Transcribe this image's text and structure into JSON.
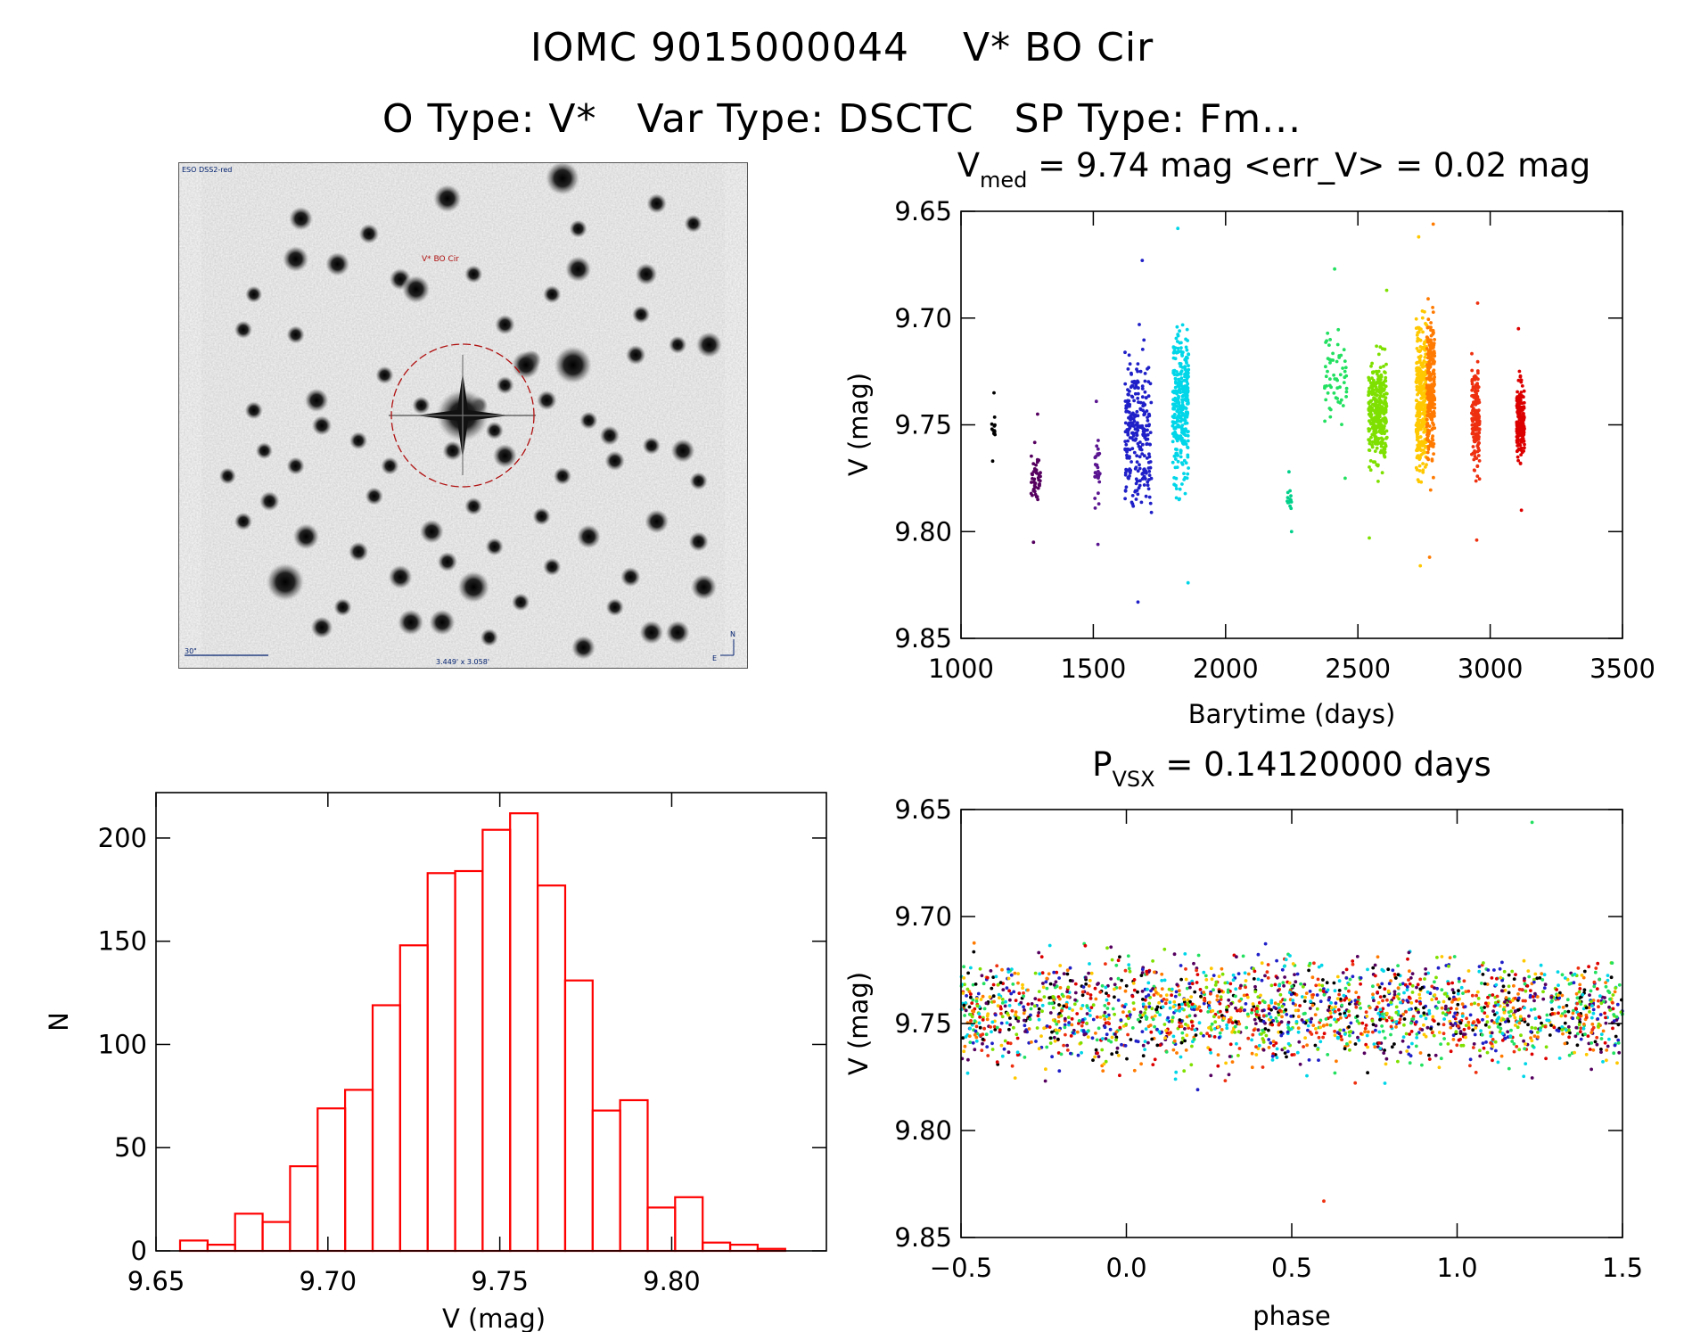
{
  "header": {
    "iomc_id": "IOMC 9015000044",
    "star_name": "V* BO Cir",
    "otype_label": "O Type:",
    "otype_value": "V*",
    "vartype_label": "Var Type:",
    "vartype_value": "DSCTC",
    "sptype_label": "SP Type:",
    "sptype_value": "Fm..."
  },
  "finder_chart": {
    "survey_label": "ESO DSS2-red",
    "target_label": "V* BO Cir",
    "scale_label": "30\"",
    "fov_label": "3.449' x 3.058'",
    "north_label": "N",
    "east_label": "E",
    "stars": [
      [
        0.69,
        0.03,
        2.6
      ],
      [
        0.47,
        0.07,
        2.0
      ],
      [
        0.19,
        0.11,
        1.6
      ],
      [
        0.32,
        0.14,
        1.2
      ],
      [
        0.72,
        0.13,
        1.0
      ],
      [
        0.87,
        0.08,
        1.2
      ],
      [
        0.18,
        0.19,
        1.8
      ],
      [
        0.26,
        0.2,
        1.6
      ],
      [
        0.38,
        0.23,
        1.4
      ],
      [
        0.52,
        0.22,
        1.0
      ],
      [
        0.72,
        0.21,
        1.8
      ],
      [
        0.85,
        0.22,
        1.4
      ],
      [
        0.94,
        0.12,
        1.0
      ],
      [
        0.1,
        0.26,
        0.9
      ],
      [
        0.41,
        0.25,
        2.0
      ],
      [
        0.67,
        0.26,
        1.0
      ],
      [
        0.84,
        0.3,
        1.0
      ],
      [
        0.08,
        0.33,
        1.0
      ],
      [
        0.18,
        0.34,
        1.0
      ],
      [
        0.58,
        0.32,
        1.2
      ],
      [
        0.63,
        0.39,
        1.2
      ],
      [
        0.71,
        0.4,
        3.0
      ],
      [
        0.62,
        0.4,
        2.0
      ],
      [
        0.83,
        0.38,
        1.2
      ],
      [
        0.91,
        0.36,
        1.0
      ],
      [
        0.97,
        0.36,
        1.8
      ],
      [
        0.22,
        0.47,
        1.6
      ],
      [
        0.1,
        0.49,
        1.0
      ],
      [
        0.58,
        0.44,
        1.0
      ],
      [
        0.66,
        0.47,
        1.2
      ],
      [
        0.23,
        0.52,
        1.2
      ],
      [
        0.3,
        0.55,
        1.0
      ],
      [
        0.56,
        0.53,
        1.0
      ],
      [
        0.58,
        0.58,
        1.6
      ],
      [
        0.78,
        0.54,
        1.2
      ],
      [
        0.86,
        0.56,
        1.0
      ],
      [
        0.92,
        0.57,
        1.6
      ],
      [
        0.79,
        0.59,
        1.2
      ],
      [
        0.18,
        0.6,
        1.0
      ],
      [
        0.36,
        0.6,
        1.0
      ],
      [
        0.48,
        0.57,
        1.2
      ],
      [
        0.69,
        0.62,
        1.0
      ],
      [
        0.13,
        0.67,
        1.2
      ],
      [
        0.33,
        0.66,
        1.0
      ],
      [
        0.52,
        0.68,
        1.0
      ],
      [
        0.44,
        0.73,
        1.6
      ],
      [
        0.65,
        0.7,
        1.0
      ],
      [
        0.74,
        0.74,
        1.6
      ],
      [
        0.87,
        0.71,
        1.6
      ],
      [
        0.95,
        0.75,
        1.2
      ],
      [
        0.2,
        0.74,
        1.8
      ],
      [
        0.3,
        0.77,
        1.2
      ],
      [
        0.47,
        0.79,
        1.2
      ],
      [
        0.56,
        0.76,
        1.0
      ],
      [
        0.16,
        0.83,
        3.0
      ],
      [
        0.38,
        0.82,
        1.6
      ],
      [
        0.52,
        0.84,
        2.4
      ],
      [
        0.67,
        0.8,
        1.0
      ],
      [
        0.82,
        0.82,
        1.2
      ],
      [
        0.96,
        0.84,
        1.8
      ],
      [
        0.23,
        0.92,
        1.4
      ],
      [
        0.4,
        0.91,
        1.8
      ],
      [
        0.46,
        0.91,
        1.8
      ],
      [
        0.55,
        0.94,
        1.0
      ],
      [
        0.73,
        0.96,
        1.6
      ],
      [
        0.86,
        0.93,
        1.6
      ],
      [
        0.91,
        0.93,
        1.6
      ],
      [
        0.08,
        0.71,
        1.0
      ],
      [
        0.27,
        0.88,
        1.0
      ],
      [
        0.61,
        0.87,
        1.0
      ],
      [
        0.79,
        0.88,
        1.0
      ],
      [
        0.35,
        0.42,
        1.0
      ],
      [
        0.12,
        0.57,
        0.9
      ],
      [
        0.42,
        0.48,
        1.0
      ],
      [
        0.53,
        0.48,
        1.0
      ],
      [
        0.95,
        0.63,
        1.0
      ],
      [
        0.74,
        0.51,
        1.0
      ],
      [
        0.05,
        0.62,
        0.9
      ]
    ]
  },
  "chart_data": [
    {
      "type": "scatter",
      "name": "light-curve",
      "title_main": "V",
      "title_sub": "med",
      "title_rest": " = 9.74 mag <err_V> = 0.02 mag",
      "xlabel": "Barytime (days)",
      "ylabel": "V (mag)",
      "xlim": [
        1000,
        3500
      ],
      "ylim": [
        9.85,
        9.65
      ],
      "xticks": [
        1000,
        1500,
        2000,
        2500,
        3000,
        3500
      ],
      "xtick_labels": [
        "1000",
        "1500",
        "2000",
        "2500",
        "3000",
        "3500"
      ],
      "yticks": [
        9.65,
        9.7,
        9.75,
        9.8,
        9.85
      ],
      "ytick_labels": [
        "9.65",
        "9.70",
        "9.75",
        "9.80",
        "9.85"
      ],
      "series": [
        {
          "name": "season-1",
          "color": "#000000",
          "t": [
            1115,
            1130
          ],
          "n": 12,
          "vmin": 9.735,
          "vmax": 9.767
        },
        {
          "name": "season-2",
          "color": "#55005f",
          "t": [
            1265,
            1300
          ],
          "n": 45,
          "vmin": 9.745,
          "vmax": 9.805
        },
        {
          "name": "season-3",
          "color": "#5a1590",
          "t": [
            1505,
            1525
          ],
          "n": 30,
          "vmin": 9.739,
          "vmax": 9.806
        },
        {
          "name": "season-4",
          "color": "#2020c8",
          "t": [
            1620,
            1720
          ],
          "n": 260,
          "vmin": 9.673,
          "vmax": 9.833
        },
        {
          "name": "season-5",
          "color": "#00d6e8",
          "t": [
            1800,
            1860
          ],
          "n": 320,
          "vmin": 9.658,
          "vmax": 9.824
        },
        {
          "name": "season-6",
          "color": "#00d08a",
          "t": [
            2230,
            2250
          ],
          "n": 14,
          "vmin": 9.772,
          "vmax": 9.8
        },
        {
          "name": "season-7",
          "color": "#22e060",
          "t": [
            2370,
            2460
          ],
          "n": 60,
          "vmin": 9.677,
          "vmax": 9.775
        },
        {
          "name": "season-8",
          "color": "#7ee000",
          "t": [
            2540,
            2610
          ],
          "n": 320,
          "vmin": 9.687,
          "vmax": 9.803
        },
        {
          "name": "season-9",
          "color": "#ffc800",
          "t": [
            2720,
            2760
          ],
          "n": 300,
          "vmin": 9.662,
          "vmax": 9.816
        },
        {
          "name": "season-10",
          "color": "#ff7a00",
          "t": [
            2760,
            2790
          ],
          "n": 240,
          "vmin": 9.656,
          "vmax": 9.812
        },
        {
          "name": "season-11",
          "color": "#ee3010",
          "t": [
            2930,
            2960
          ],
          "n": 160,
          "vmin": 9.693,
          "vmax": 9.804
        },
        {
          "name": "season-12",
          "color": "#dd0000",
          "t": [
            3100,
            3130
          ],
          "n": 190,
          "vmin": 9.705,
          "vmax": 9.79
        }
      ]
    },
    {
      "type": "bar",
      "name": "histogram",
      "xlabel": "V (mag)",
      "ylabel": "N",
      "xlim": [
        9.65,
        9.845
      ],
      "ylim": [
        0,
        222
      ],
      "bin_edges": [
        9.657,
        9.665,
        9.673,
        9.681,
        9.689,
        9.697,
        9.705,
        9.713,
        9.721,
        9.729,
        9.737,
        9.745,
        9.753,
        9.761,
        9.769,
        9.777,
        9.785,
        9.793,
        9.801,
        9.809,
        9.817,
        9.825,
        9.833
      ],
      "counts": [
        5,
        3,
        18,
        14,
        41,
        69,
        78,
        119,
        148,
        183,
        184,
        204,
        212,
        177,
        131,
        68,
        73,
        21,
        26,
        4,
        3,
        1
      ],
      "color": "#ff0000",
      "xticks": [
        9.65,
        9.7,
        9.75,
        9.8
      ],
      "xtick_labels": [
        "9.65",
        "9.70",
        "9.75",
        "9.80"
      ],
      "yticks": [
        0,
        50,
        100,
        150,
        200
      ],
      "ytick_labels": [
        "0",
        "50",
        "100",
        "150",
        "200"
      ]
    },
    {
      "type": "scatter",
      "name": "phased-curve",
      "title_main": "P",
      "title_sub": "VSX",
      "title_rest": " = 0.14120000 days",
      "xlabel": "phase",
      "ylabel": "V (mag)",
      "xlim": [
        -0.5,
        1.5
      ],
      "ylim": [
        9.85,
        9.65
      ],
      "xticks": [
        -0.5,
        0.0,
        0.5,
        1.0,
        1.5
      ],
      "xtick_labels": [
        "−0.5",
        "0.0",
        "0.5",
        "1.0",
        "1.5"
      ],
      "yticks": [
        9.65,
        9.7,
        9.75,
        9.8,
        9.85
      ],
      "ytick_labels": [
        "9.65",
        "9.70",
        "9.75",
        "9.80",
        "9.85"
      ],
      "period_days": 0.1412,
      "colors": [
        "#000000",
        "#55005f",
        "#2020c8",
        "#00d6e8",
        "#22e060",
        "#7ee000",
        "#ffc800",
        "#ff7a00",
        "#ee3010",
        "#dd0000"
      ],
      "n_points": 2200,
      "vmin": 9.656,
      "vmax": 9.833
    }
  ]
}
